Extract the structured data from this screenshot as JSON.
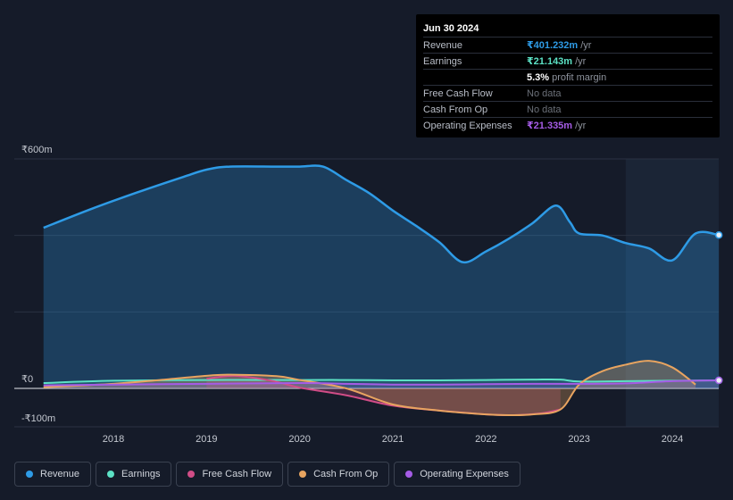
{
  "tooltip": {
    "date": "Jun 30 2024",
    "rows": [
      {
        "label": "Revenue",
        "value": "₹401.232m",
        "unit": "/yr",
        "color": "#2e9be6"
      },
      {
        "label": "Earnings",
        "value": "₹21.143m",
        "unit": "/yr",
        "color": "#5ce1c5"
      },
      {
        "label": "",
        "value": "5.3%",
        "unit": "profit margin",
        "color": "#ffffff"
      },
      {
        "label": "Free Cash Flow",
        "value": "No data",
        "unit": "",
        "color": "#6b7079"
      },
      {
        "label": "Cash From Op",
        "value": "No data",
        "unit": "",
        "color": "#6b7079"
      },
      {
        "label": "Operating Expenses",
        "value": "₹21.335m",
        "unit": "/yr",
        "color": "#a55ce6"
      }
    ]
  },
  "legend": [
    {
      "label": "Revenue",
      "color": "#2e9be6"
    },
    {
      "label": "Earnings",
      "color": "#5ce1c5"
    },
    {
      "label": "Free Cash Flow",
      "color": "#d14d87"
    },
    {
      "label": "Cash From Op",
      "color": "#e8a460"
    },
    {
      "label": "Operating Expenses",
      "color": "#a55ce6"
    }
  ],
  "chart_data": {
    "type": "area",
    "y_tick_labels": [
      "₹600m",
      "₹0",
      "-₹100m"
    ],
    "x_tick_labels": [
      "2018",
      "2019",
      "2020",
      "2021",
      "2022",
      "2023",
      "2024"
    ],
    "xlim": [
      2017.2,
      2024.5
    ],
    "ylim": [
      -100,
      600
    ],
    "grid": true,
    "forecast_shade_start": 2023.5,
    "series": [
      {
        "name": "Revenue",
        "color": "#2e9be6",
        "x": [
          2017.25,
          2017.75,
          2018.25,
          2018.75,
          2019.0,
          2019.25,
          2019.75,
          2020.0,
          2020.25,
          2020.5,
          2020.75,
          2021.0,
          2021.25,
          2021.5,
          2021.75,
          2022.0,
          2022.25,
          2022.5,
          2022.75,
          2022.9,
          2023.0,
          2023.25,
          2023.5,
          2023.75,
          2024.0,
          2024.25,
          2024.5
        ],
        "y": [
          420,
          468,
          512,
          553,
          572,
          580,
          580,
          580,
          580,
          545,
          510,
          465,
          425,
          382,
          330,
          358,
          392,
          432,
          478,
          435,
          405,
          400,
          380,
          366,
          335,
          405,
          401
        ]
      },
      {
        "name": "Earnings",
        "color": "#5ce1c5",
        "x": [
          2017.25,
          2018.0,
          2019.0,
          2020.0,
          2020.5,
          2021.0,
          2021.5,
          2022.0,
          2022.5,
          2022.8,
          2023.0,
          2023.5,
          2024.0,
          2024.5
        ],
        "y": [
          14,
          20,
          22,
          22,
          22,
          21,
          21,
          22,
          23,
          23,
          18,
          19,
          20,
          21
        ]
      },
      {
        "name": "Free Cash Flow",
        "color": "#d14d87",
        "x": [
          2019.0,
          2019.3,
          2019.7,
          2020.0,
          2020.5,
          2021.0,
          2021.5,
          2022.0,
          2022.3,
          2022.6,
          2022.8
        ],
        "y": [
          25,
          33,
          20,
          2,
          -18,
          -45,
          -58,
          -68,
          -70,
          -65,
          -55
        ]
      },
      {
        "name": "Cash From Op",
        "color": "#e8a460",
        "x": [
          2017.25,
          2018.0,
          2018.5,
          2019.0,
          2019.25,
          2019.75,
          2020.0,
          2020.5,
          2021.0,
          2021.5,
          2022.0,
          2022.25,
          2022.5,
          2022.8,
          2023.0,
          2023.25,
          2023.5,
          2023.75,
          2024.0,
          2024.25
        ],
        "y": [
          3,
          12,
          22,
          33,
          36,
          32,
          22,
          0,
          -42,
          -58,
          -68,
          -70,
          -68,
          -55,
          10,
          45,
          62,
          72,
          55,
          10
        ]
      },
      {
        "name": "Operating Expenses",
        "color": "#a55ce6",
        "x": [
          2017.25,
          2018.0,
          2019.0,
          2020.0,
          2020.5,
          2021.0,
          2021.5,
          2022.0,
          2022.5,
          2023.0,
          2023.5,
          2024.0,
          2024.5
        ],
        "y": [
          8,
          10,
          12,
          14,
          12,
          10,
          10,
          11,
          12,
          12,
          13,
          19,
          21
        ]
      }
    ]
  }
}
